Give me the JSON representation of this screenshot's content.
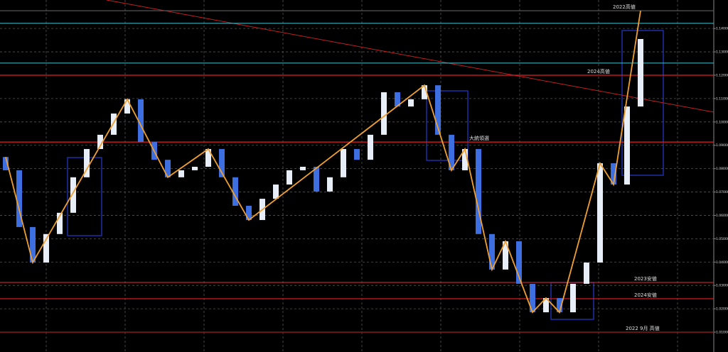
{
  "chart_data": {
    "type": "candlestick",
    "ylim": [
      1.0015,
      1.1522
    ],
    "yticks": [
      {
        "value": 1.01,
        "label": "1.01000"
      },
      {
        "value": 1.02,
        "label": "1.02000"
      },
      {
        "value": 1.03,
        "label": "1.03000"
      },
      {
        "value": 1.04,
        "label": "1.04000"
      },
      {
        "value": 1.05,
        "label": "1.05000"
      },
      {
        "value": 1.06,
        "label": "1.06000"
      },
      {
        "value": 1.07,
        "label": "1.07000"
      },
      {
        "value": 1.08,
        "label": "1.08000"
      },
      {
        "value": 1.09,
        "label": "1.09000"
      },
      {
        "value": 1.1,
        "label": "1.10000"
      },
      {
        "value": 1.11,
        "label": "1.11000"
      },
      {
        "value": 1.12,
        "label": "1.12000"
      },
      {
        "value": 1.13,
        "label": "1.13000"
      },
      {
        "value": 1.14,
        "label": "1.14000"
      }
    ],
    "grid": true,
    "up_color": "#e8eef8",
    "down_color": "#3d6fe0",
    "open": [
      1.085,
      1.0793,
      1.055,
      1.0398,
      1.052,
      1.0611,
      1.0763,
      1.0884,
      1.0945,
      1.1036,
      1.1097,
      1.0914,
      1.0838,
      1.0763,
      1.0793,
      1.0808,
      1.0884,
      1.0763,
      1.0641,
      1.058,
      1.0671,
      1.0732,
      1.0793,
      1.0808,
      1.0702,
      1.0763,
      1.0884,
      1.0838,
      1.0945,
      1.1127,
      1.1066,
      1.1097,
      1.1157,
      1.0945,
      1.0793,
      1.0884,
      1.052,
      1.0368,
      1.0489,
      1.0307,
      1.0185,
      1.0246,
      1.0185,
      1.0307,
      1.0398,
      1.0823,
      1.0732,
      1.1066
    ],
    "close": [
      1.0793,
      1.055,
      1.0398,
      1.052,
      1.0611,
      1.0763,
      1.0884,
      1.0945,
      1.1036,
      1.1097,
      1.0914,
      1.0838,
      1.0763,
      1.0793,
      1.0808,
      1.0884,
      1.0763,
      1.0641,
      1.058,
      1.0671,
      1.0732,
      1.0793,
      1.0808,
      1.0702,
      1.0763,
      1.0884,
      1.0838,
      1.0945,
      1.1127,
      1.1066,
      1.1097,
      1.1157,
      1.0945,
      1.0793,
      1.0884,
      1.052,
      1.0368,
      1.0489,
      1.0307,
      1.0185,
      1.0246,
      1.0185,
      1.0307,
      1.0398,
      1.0823,
      1.0732,
      1.1066,
      1.1355
    ],
    "zigzag": {
      "color": "#f0a030",
      "x": [
        0,
        2,
        9,
        12,
        15,
        18,
        31,
        33,
        34,
        36,
        37,
        39,
        40,
        41,
        44,
        45,
        47
      ],
      "values": [
        1.085,
        1.0398,
        1.1097,
        1.0763,
        1.0884,
        1.058,
        1.1157,
        1.0793,
        1.0884,
        1.0368,
        1.0489,
        1.0185,
        1.0246,
        1.0185,
        1.0823,
        1.0732,
        1.1476
      ]
    },
    "levels": [
      {
        "label": "2022高値",
        "value": 1.1476,
        "color": "#555555"
      },
      {
        "label": "2024高値",
        "value": 1.12,
        "color": "#e02020"
      },
      {
        "label": "大統領選",
        "value": 1.0914,
        "color": "#e02020"
      },
      {
        "label": "2023安値",
        "value": 1.0313,
        "color": "#e02020"
      },
      {
        "label": "2024安値",
        "value": 1.0243,
        "color": "#e02020"
      },
      {
        "label": "2022 9月 高値",
        "value": 1.01,
        "color": "#a02020"
      }
    ],
    "cyan_levels": [
      1.1422,
      1.1252
    ],
    "trendline": {
      "color": "#c02020",
      "values": [
        1.1522,
        1.1042
      ]
    }
  }
}
